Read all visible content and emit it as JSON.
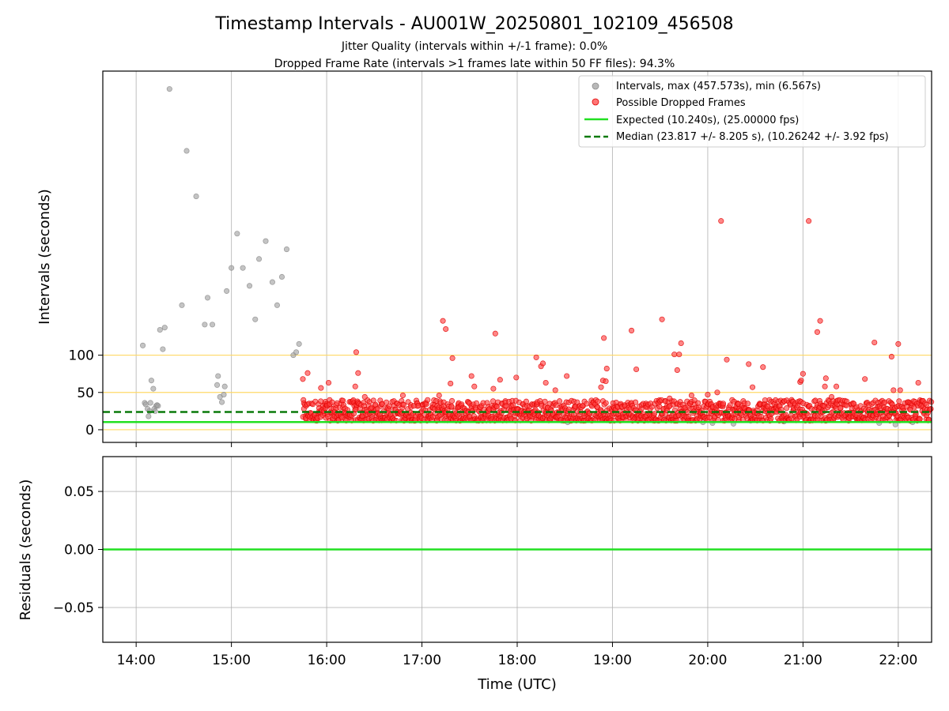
{
  "chart_data": {
    "type": "scatter",
    "title": "Timestamp Intervals - AU001W_20250801_102109_456508",
    "subtitle_lines": [
      "Jitter Quality (intervals within +/-1 frame): 0.0%",
      "Dropped Frame Rate (intervals >1 frames late within 50 FF files): 94.3%"
    ],
    "xlabel": "Time (UTC)",
    "x_ticks": [
      "14:00",
      "15:00",
      "16:00",
      "17:00",
      "18:00",
      "19:00",
      "20:00",
      "21:00",
      "22:00"
    ],
    "xlim_hours": [
      13.65,
      22.35
    ],
    "top_panel": {
      "ylabel": "Intervals (seconds)",
      "ylim": [
        -17,
        481
      ],
      "y_ticks": [
        0,
        50,
        100
      ],
      "reference_lines": [
        0,
        50,
        100
      ],
      "reference_line_color": "#ffd966",
      "expected_value": 10.24,
      "median_value": 23.817,
      "legend": [
        {
          "label": "Intervals, max (457.573s), min (6.567s)",
          "kind": "point",
          "color": "#a0a0a0"
        },
        {
          "label": "Possible Dropped Frames",
          "kind": "point",
          "color": "#ff3b3b"
        },
        {
          "label": "Expected (10.240s), (25.00000 fps)",
          "kind": "line",
          "color": "#22e022"
        },
        {
          "label": "Median (23.817 +/- 8.205 s), (10.26242 +/- 3.92 fps)",
          "kind": "dashed",
          "color": "#0a7a0a"
        }
      ],
      "legend_position": "top-right",
      "gray_points": [
        [
          14.07,
          113
        ],
        [
          14.09,
          36
        ],
        [
          14.1,
          34
        ],
        [
          14.12,
          28
        ],
        [
          14.13,
          18
        ],
        [
          14.14,
          25
        ],
        [
          14.15,
          36
        ],
        [
          14.16,
          66
        ],
        [
          14.18,
          55
        ],
        [
          14.19,
          28
        ],
        [
          14.2,
          25
        ],
        [
          14.21,
          32
        ],
        [
          14.22,
          33
        ],
        [
          14.23,
          32
        ],
        [
          14.25,
          134
        ],
        [
          14.28,
          108
        ],
        [
          14.3,
          137
        ],
        [
          14.35,
          457
        ],
        [
          14.48,
          167
        ],
        [
          14.53,
          374
        ],
        [
          14.63,
          313
        ],
        [
          14.72,
          141
        ],
        [
          14.75,
          177
        ],
        [
          14.8,
          141
        ],
        [
          14.85,
          60
        ],
        [
          14.86,
          72
        ],
        [
          14.88,
          44
        ],
        [
          14.9,
          37
        ],
        [
          14.92,
          47
        ],
        [
          14.93,
          58
        ],
        [
          14.95,
          186
        ],
        [
          15.0,
          217
        ],
        [
          15.06,
          263
        ],
        [
          15.12,
          217
        ],
        [
          15.19,
          193
        ],
        [
          15.25,
          148
        ],
        [
          15.29,
          229
        ],
        [
          15.36,
          253
        ],
        [
          15.43,
          198
        ],
        [
          15.48,
          167
        ],
        [
          15.53,
          205
        ],
        [
          15.58,
          242
        ],
        [
          15.65,
          100
        ],
        [
          15.68,
          104
        ],
        [
          15.71,
          115
        ],
        [
          18.47,
          12
        ],
        [
          18.53,
          10
        ],
        [
          19.3,
          13
        ],
        [
          19.55,
          14
        ],
        [
          19.95,
          10
        ],
        [
          20.05,
          9
        ],
        [
          20.27,
          8
        ],
        [
          20.45,
          12
        ],
        [
          20.8,
          11
        ],
        [
          21.8,
          9
        ],
        [
          21.97,
          7
        ],
        [
          22.15,
          10
        ]
      ],
      "red_outliers": [
        [
          15.75,
          68
        ],
        [
          15.8,
          76
        ],
        [
          15.94,
          56
        ],
        [
          16.02,
          63
        ],
        [
          16.3,
          58
        ],
        [
          16.31,
          104
        ],
        [
          16.33,
          76
        ],
        [
          16.4,
          44
        ],
        [
          16.8,
          46
        ],
        [
          17.18,
          46
        ],
        [
          17.22,
          146
        ],
        [
          17.25,
          135
        ],
        [
          17.3,
          62
        ],
        [
          17.32,
          96
        ],
        [
          17.52,
          72
        ],
        [
          17.55,
          58
        ],
        [
          17.75,
          55
        ],
        [
          17.77,
          129
        ],
        [
          17.82,
          67
        ],
        [
          17.99,
          70
        ],
        [
          18.2,
          97
        ],
        [
          18.25,
          85
        ],
        [
          18.27,
          89
        ],
        [
          18.3,
          63
        ],
        [
          18.4,
          53
        ],
        [
          18.52,
          72
        ],
        [
          18.88,
          57
        ],
        [
          18.9,
          66
        ],
        [
          18.91,
          123
        ],
        [
          18.93,
          65
        ],
        [
          18.94,
          82
        ],
        [
          19.2,
          133
        ],
        [
          19.25,
          81
        ],
        [
          19.52,
          148
        ],
        [
          19.6,
          42
        ],
        [
          19.65,
          101
        ],
        [
          19.68,
          80
        ],
        [
          19.7,
          101
        ],
        [
          19.72,
          116
        ],
        [
          19.83,
          46
        ],
        [
          20.0,
          47
        ],
        [
          20.1,
          50
        ],
        [
          20.14,
          280
        ],
        [
          20.2,
          94
        ],
        [
          20.43,
          88
        ],
        [
          20.47,
          57
        ],
        [
          20.58,
          84
        ],
        [
          20.97,
          64
        ],
        [
          20.98,
          66
        ],
        [
          21.0,
          75
        ],
        [
          21.06,
          280
        ],
        [
          21.15,
          131
        ],
        [
          21.18,
          146
        ],
        [
          21.23,
          58
        ],
        [
          21.24,
          69
        ],
        [
          21.3,
          44
        ],
        [
          21.35,
          58
        ],
        [
          21.65,
          68
        ],
        [
          21.75,
          117
        ],
        [
          21.93,
          98
        ],
        [
          21.95,
          53
        ],
        [
          22.0,
          115
        ],
        [
          22.02,
          53
        ],
        [
          22.21,
          63
        ]
      ],
      "red_band": {
        "x_from": 15.75,
        "x_to": 22.35,
        "y_min": 12,
        "y_max": 40,
        "count": 1400
      }
    },
    "bottom_panel": {
      "ylabel": "Residuals (seconds)",
      "ylim": [
        -0.08,
        0.08
      ],
      "y_ticks": [
        "0.05",
        "0.00",
        "−0.05"
      ],
      "y_tick_values": [
        0.05,
        0,
        -0.05
      ],
      "zero_line_color": "#22e022"
    }
  }
}
